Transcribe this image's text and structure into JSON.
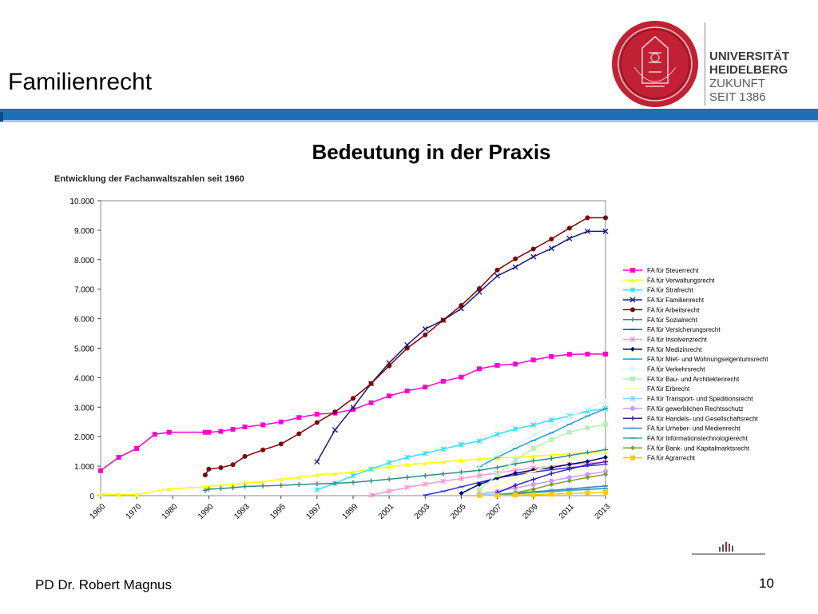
{
  "slide": {
    "title": "Familienrecht",
    "subtitle": "Bedeutung in der Praxis",
    "footer_author": "PD Dr. Robert Magnus",
    "page_number": "10"
  },
  "logo": {
    "line1": "UNIVERSITÄT",
    "line2": "HEIDELBERG",
    "line3": "ZUKUNFT",
    "line4": "SEIT 1386"
  },
  "colors": {
    "bar": "#1f6fb6",
    "seal": "#c22033"
  },
  "chart_data": {
    "type": "line",
    "title": "Entwicklung der Fachanwaltszahlen seit 1960",
    "x_labels": [
      "1960",
      "1970",
      "1980",
      "1990",
      "1993",
      "1995",
      "1997",
      "1999",
      "2001",
      "2003",
      "2005",
      "2007",
      "2009",
      "2011",
      "2013"
    ],
    "ylim": [
      0,
      10000
    ],
    "y_ticks": [
      0,
      1000,
      2000,
      3000,
      4000,
      5000,
      6000,
      7000,
      8000,
      9000,
      10000
    ],
    "y_tick_labels": [
      "0",
      "1.000",
      "2.000",
      "3.000",
      "4.000",
      "5.000",
      "6.000",
      "7.000",
      "8.000",
      "9.000",
      "10.000"
    ],
    "legend_position": "right",
    "grid": false,
    "series": [
      {
        "name": "FA für Steuerrecht",
        "color": "#ff00cc",
        "marker": "square",
        "x": [
          1960,
          1965,
          1970,
          1975,
          1979,
          1989,
          1990,
          1991,
          1992,
          1993,
          1994,
          1995,
          1996,
          1997,
          1998,
          1999,
          2000,
          2001,
          2002,
          2003,
          2004,
          2005,
          2006,
          2007,
          2008,
          2009,
          2010,
          2011,
          2012,
          2013
        ],
        "values": [
          850,
          1300,
          1600,
          2080,
          2150,
          2150,
          2150,
          2180,
          2250,
          2330,
          2400,
          2500,
          2650,
          2760,
          2800,
          2920,
          3150,
          3380,
          3550,
          3680,
          3880,
          4020,
          4300,
          4420,
          4460,
          4600,
          4720,
          4790,
          4800,
          4800
        ]
      },
      {
        "name": "FA für Verwaltungsrecht",
        "color": "#ffff00",
        "marker": "triangle",
        "x": [
          1960,
          1965,
          1970,
          1979,
          1989,
          1990,
          1991,
          1992,
          1993,
          1994,
          1995,
          1996,
          1997,
          1998,
          1999,
          2000,
          2001,
          2002,
          2003,
          2004,
          2005,
          2006,
          2007,
          2008,
          2009,
          2010,
          2011,
          2012,
          2013
        ],
        "values": [
          60,
          40,
          40,
          230,
          300,
          320,
          350,
          380,
          430,
          470,
          560,
          620,
          700,
          750,
          800,
          900,
          980,
          1050,
          1100,
          1150,
          1200,
          1240,
          1280,
          1300,
          1340,
          1380,
          1420,
          1460,
          1500
        ]
      },
      {
        "name": "FA für Strafrecht",
        "color": "#33e0ff",
        "marker": "star",
        "x": [
          1997,
          1998,
          1999,
          2000,
          2001,
          2002,
          2003,
          2004,
          2005,
          2006,
          2007,
          2008,
          2009,
          2010,
          2011,
          2012,
          2013
        ],
        "values": [
          200,
          420,
          680,
          900,
          1120,
          1300,
          1430,
          1580,
          1730,
          1850,
          2080,
          2260,
          2400,
          2560,
          2700,
          2870,
          2950
        ]
      },
      {
        "name": "FA für Familienrecht",
        "color": "#1a1a8c",
        "marker": "x",
        "x": [
          1997,
          1998,
          1999,
          2000,
          2001,
          2002,
          2003,
          2004,
          2005,
          2006,
          2007,
          2008,
          2009,
          2010,
          2011,
          2012,
          2013
        ],
        "values": [
          1150,
          2230,
          2990,
          3800,
          4500,
          5110,
          5650,
          5950,
          6340,
          6900,
          7450,
          7750,
          8100,
          8380,
          8720,
          8960,
          8960
        ]
      },
      {
        "name": "FA für Arbeitsrecht",
        "color": "#800000",
        "marker": "circle",
        "x": [
          1989,
          1990,
          1991,
          1992,
          1993,
          1994,
          1995,
          1996,
          1997,
          1998,
          1999,
          2000,
          2001,
          2002,
          2003,
          2004,
          2005,
          2006,
          2007,
          2008,
          2009,
          2010,
          2011,
          2012,
          2013
        ],
        "values": [
          700,
          900,
          950,
          1050,
          1330,
          1550,
          1750,
          2100,
          2480,
          2840,
          3300,
          3800,
          4400,
          5000,
          5450,
          5950,
          6450,
          7020,
          7650,
          8030,
          8360,
          8700,
          9070,
          9420,
          9420
        ]
      },
      {
        "name": "FA für Sozialrecht",
        "color": "#2f8f86",
        "marker": "plus",
        "x": [
          1989,
          1990,
          1991,
          1992,
          1993,
          1994,
          1995,
          1996,
          1997,
          1998,
          1999,
          2000,
          2001,
          2002,
          2003,
          2004,
          2005,
          2006,
          2007,
          2008,
          2009,
          2010,
          2011,
          2012,
          2013
        ],
        "values": [
          180,
          220,
          240,
          270,
          310,
          330,
          350,
          380,
          400,
          420,
          450,
          500,
          560,
          620,
          680,
          740,
          800,
          860,
          960,
          1080,
          1180,
          1260,
          1360,
          1460,
          1560
        ]
      },
      {
        "name": "FA für Versicherungsrecht",
        "color": "#3333cc",
        "marker": "dash",
        "x": [
          2003,
          2004,
          2005,
          2006,
          2007,
          2008,
          2009,
          2010,
          2011,
          2012,
          2013
        ],
        "values": [
          20,
          150,
          300,
          450,
          600,
          700,
          800,
          880,
          950,
          1010,
          1060
        ]
      },
      {
        "name": "FA für Insolvenzrecht",
        "color": "#ff99cc",
        "marker": "star",
        "x": [
          2000,
          2001,
          2002,
          2003,
          2004,
          2005,
          2006,
          2007,
          2008,
          2009,
          2010,
          2011,
          2012,
          2013
        ],
        "values": [
          20,
          150,
          280,
          390,
          490,
          580,
          680,
          770,
          860,
          940,
          1000,
          1050,
          1100,
          1130
        ]
      },
      {
        "name": "FA für Medizinrecht",
        "color": "#000066",
        "marker": "diamond",
        "x": [
          2005,
          2006,
          2007,
          2008,
          2009,
          2010,
          2011,
          2012,
          2013
        ],
        "values": [
          80,
          380,
          600,
          760,
          870,
          950,
          1060,
          1160,
          1300
        ]
      },
      {
        "name": "FA für Miet- und Wohnungseigentumsrecht",
        "color": "#2a9fd6",
        "marker": "dash",
        "x": [
          2006,
          2007,
          2008,
          2009,
          2010,
          2011,
          2012,
          2013
        ],
        "values": [
          980,
          1300,
          1600,
          1870,
          2130,
          2420,
          2700,
          2950
        ]
      },
      {
        "name": "FA für Verkehrsrecht",
        "color": "#d8f4ff",
        "marker": "star",
        "x": [
          2006,
          2007,
          2008,
          2009,
          2010,
          2011,
          2012,
          2013
        ],
        "values": [
          1000,
          1400,
          1750,
          2050,
          2350,
          2650,
          2950,
          3200
        ]
      },
      {
        "name": "FA für Bau- und Architektenrecht",
        "color": "#b6f0b6",
        "marker": "square",
        "x": [
          2006,
          2007,
          2008,
          2009,
          2010,
          2011,
          2012,
          2013
        ],
        "values": [
          200,
          700,
          1200,
          1600,
          1900,
          2150,
          2300,
          2420
        ]
      },
      {
        "name": "FA für Erbrecht",
        "color": "#ffffaa",
        "marker": "dash",
        "x": [
          2006,
          2007,
          2008,
          2009,
          2010,
          2011,
          2012,
          2013
        ],
        "values": [
          100,
          350,
          600,
          820,
          1050,
          1230,
          1380,
          1500
        ]
      },
      {
        "name": "FA für Transport- und Speditionsrecht",
        "color": "#99ccff",
        "marker": "star",
        "x": [
          2006,
          2007,
          2008,
          2009,
          2010,
          2011,
          2012,
          2013
        ],
        "values": [
          20,
          60,
          100,
          140,
          170,
          200,
          230,
          260
        ]
      },
      {
        "name": "FA für gewerblichen Rechtsschutz",
        "color": "#cc99ff",
        "marker": "circle",
        "x": [
          2006,
          2007,
          2008,
          2009,
          2010,
          2011,
          2012,
          2013
        ],
        "values": [
          50,
          150,
          260,
          380,
          500,
          620,
          720,
          820
        ]
      },
      {
        "name": "FA für Handels- und Gesellschaftsrecht",
        "color": "#3322aa",
        "marker": "plus",
        "x": [
          2007,
          2008,
          2009,
          2010,
          2011,
          2012,
          2013
        ],
        "values": [
          100,
          350,
          550,
          750,
          900,
          1050,
          1150
        ]
      },
      {
        "name": "FA für Urheber- und Medienrecht",
        "color": "#4a7fbf",
        "marker": "dash",
        "x": [
          2007,
          2008,
          2009,
          2010,
          2011,
          2012,
          2013
        ],
        "values": [
          30,
          80,
          130,
          180,
          230,
          280,
          330
        ]
      },
      {
        "name": "FA für Informationstechnologierecht",
        "color": "#2ab0a0",
        "marker": "dash",
        "x": [
          2007,
          2008,
          2009,
          2010,
          2011,
          2012,
          2013
        ],
        "values": [
          20,
          60,
          100,
          140,
          180,
          210,
          240
        ]
      },
      {
        "name": "FA für Bank- und Kapitalmarktsrecht",
        "color": "#7fa020",
        "marker": "diamond",
        "x": [
          2008,
          2009,
          2010,
          2011,
          2012,
          2013
        ],
        "values": [
          100,
          220,
          380,
          500,
          620,
          720
        ]
      },
      {
        "name": "FA für Agrarrecht",
        "color": "#ffcc00",
        "marker": "square",
        "x": [
          2006,
          2007,
          2008,
          2009,
          2010,
          2011,
          2012,
          2013
        ],
        "values": [
          5,
          10,
          20,
          30,
          50,
          70,
          90,
          110
        ]
      }
    ]
  }
}
